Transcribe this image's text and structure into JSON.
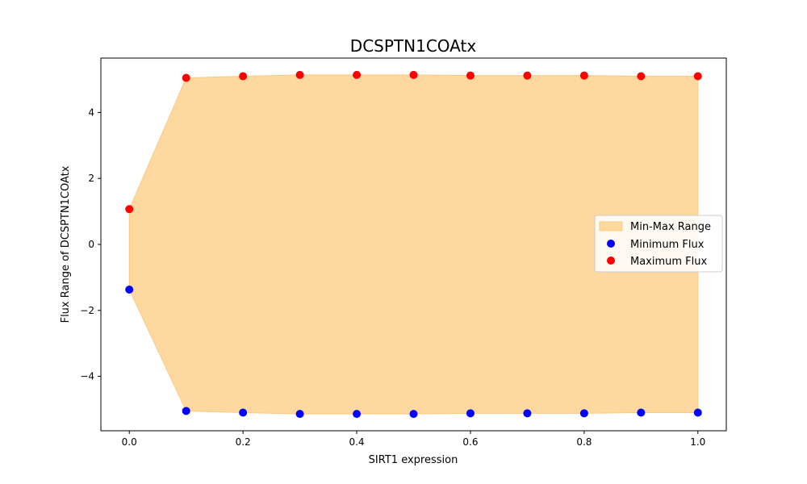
{
  "chart_data": {
    "type": "scatter",
    "title": "DCSPTN1COAtx",
    "xlabel": "SIRT1 expression",
    "ylabel": "Flux Range of DCSPTN1COAtx",
    "xlim": [
      -0.05,
      1.05
    ],
    "ylim": [
      -5.65,
      5.65
    ],
    "x_ticks": [
      0.0,
      0.2,
      0.4,
      0.6,
      0.8,
      1.0
    ],
    "x_tick_labels": [
      "0.0",
      "0.2",
      "0.4",
      "0.6",
      "0.8",
      "1.0"
    ],
    "y_ticks": [
      -4,
      -2,
      0,
      2,
      4
    ],
    "y_tick_labels": [
      "−4",
      "−2",
      "0",
      "2",
      "4"
    ],
    "grid": false,
    "legend_position": "center-right",
    "x": [
      0.0,
      0.1,
      0.2,
      0.3,
      0.4,
      0.5,
      0.6,
      0.7,
      0.8,
      0.9,
      1.0
    ],
    "series": [
      {
        "name": "Min-Max Range",
        "kind": "area",
        "color": "#fdd9a0"
      },
      {
        "name": "Minimum Flux",
        "kind": "scatter",
        "color": "#0000ff",
        "values": [
          -1.37,
          -5.05,
          -5.1,
          -5.14,
          -5.14,
          -5.14,
          -5.12,
          -5.12,
          -5.12,
          -5.1,
          -5.1
        ]
      },
      {
        "name": "Maximum Flux",
        "kind": "scatter",
        "color": "#ff0000",
        "values": [
          1.07,
          5.05,
          5.1,
          5.14,
          5.14,
          5.14,
          5.12,
          5.12,
          5.12,
          5.1,
          5.1
        ]
      }
    ]
  }
}
